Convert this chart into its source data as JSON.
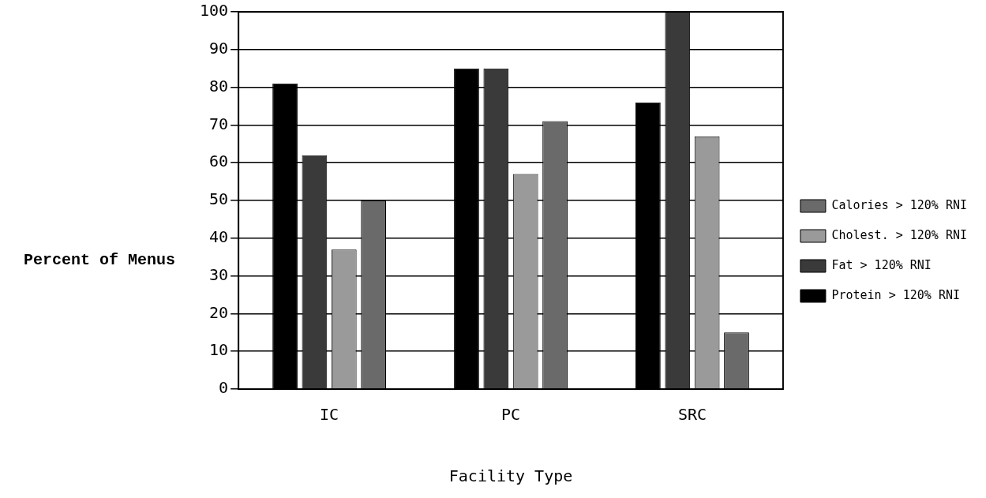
{
  "chart_data": {
    "type": "bar",
    "xlabel": "Facility Type",
    "ylabel": "Percent of Menus",
    "categories": [
      "IC",
      "PC",
      "SRC"
    ],
    "series": [
      {
        "name": "Protein > 120% RNI",
        "color": "#000000",
        "values": [
          81,
          85,
          76
        ]
      },
      {
        "name": "Fat > 120% RNI",
        "color": "#3a3a3a",
        "values": [
          62,
          85,
          100
        ]
      },
      {
        "name": "Cholest. > 120% RNI",
        "color": "#9a9a9a",
        "values": [
          37,
          57,
          67
        ]
      },
      {
        "name": "Calories > 120% RNI",
        "color": "#6a6a6a",
        "values": [
          50,
          71,
          15
        ]
      }
    ],
    "ylim": [
      0,
      100
    ],
    "yticks": [
      0,
      10,
      20,
      30,
      40,
      50,
      60,
      70,
      80,
      90,
      100
    ],
    "grid": "y",
    "legend": "right"
  }
}
